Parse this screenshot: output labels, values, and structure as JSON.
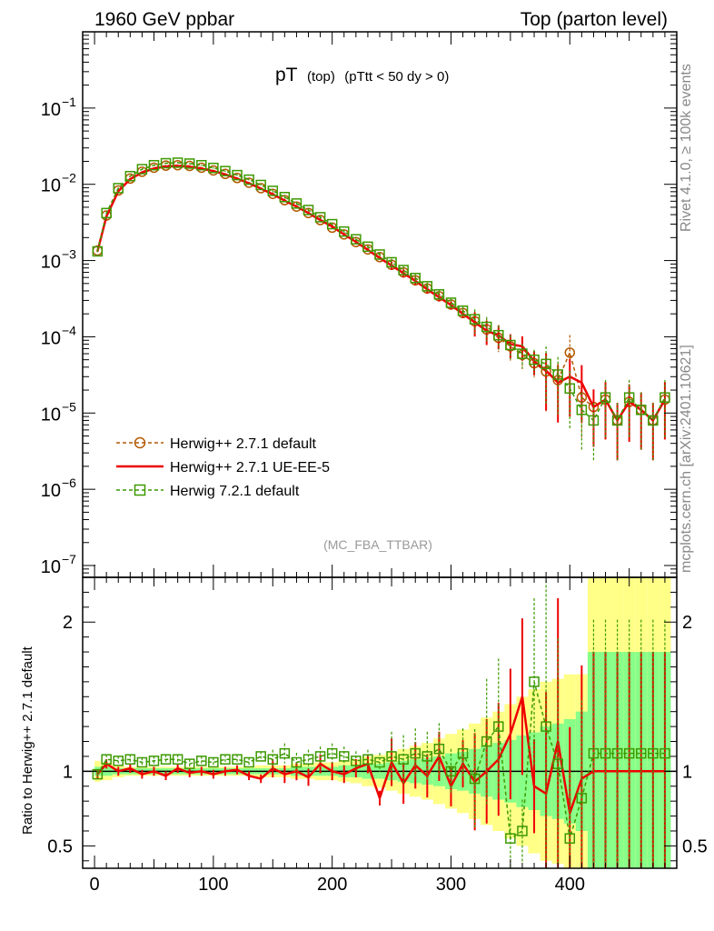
{
  "header": {
    "left": "1960 GeV ppbar",
    "right": "Top (parton level)"
  },
  "plot_title": {
    "main": "pT",
    "sub1": "(top)",
    "sub2": "(pTtt < 50 dy > 0)"
  },
  "side_labels": {
    "rivet": "Rivet 4.1.0, ≥ 100k events",
    "site": "mcplots.cern.ch [arXiv:2401.10621]"
  },
  "analysis_tag": "(MC_FBA_TTBAR)",
  "ratio_ylabel": "Ratio to Herwig++ 2.7.1 default",
  "colors": {
    "herwig_default": "#b35900",
    "herwig_ueee5": "#ee0000",
    "herwig7": "#3c9900",
    "band_yellow": "#ffff88",
    "band_green": "#88ff88"
  },
  "chart_data": {
    "type": "line",
    "xlabel": "",
    "ylabel": "",
    "xlim": [
      -10,
      490
    ],
    "main": {
      "yscale": "log",
      "ylim": [
        7e-08,
        1.0
      ],
      "ytick_labels": [
        {
          "value": 1e-07,
          "mantissa": "10",
          "exp": "−7"
        },
        {
          "value": 1e-06,
          "mantissa": "10",
          "exp": "−6"
        },
        {
          "value": 1e-05,
          "mantissa": "10",
          "exp": "−5"
        },
        {
          "value": 0.0001,
          "mantissa": "10",
          "exp": "−4"
        },
        {
          "value": 0.001,
          "mantissa": "10",
          "exp": "−3"
        },
        {
          "value": 0.01,
          "mantissa": "10",
          "exp": "−2"
        },
        {
          "value": 0.1,
          "mantissa": "10",
          "exp": "−1"
        }
      ]
    },
    "ratio": {
      "ylim": [
        0.35,
        2.3
      ],
      "yticks": [
        0.5,
        1,
        2
      ],
      "ytick_labels": [
        "0.5",
        "1",
        "2"
      ]
    },
    "xticks": [
      0,
      100,
      200,
      300,
      400
    ],
    "xtick_labels": [
      "0",
      "100",
      "200",
      "300",
      "400"
    ],
    "legend": [
      {
        "label": "Herwig++ 2.7.1 default",
        "style": "circle-dashed"
      },
      {
        "label": "Herwig++ 2.7.1 UE-EE-5",
        "style": "solid"
      },
      {
        "label": "Herwig 7.2.1 default",
        "style": "square-dashed"
      }
    ],
    "series": [
      {
        "name": "Herwig++ 2.7.1 default",
        "x": [
          2.5,
          10,
          20,
          30,
          40,
          50,
          60,
          70,
          80,
          90,
          100,
          110,
          120,
          130,
          140,
          150,
          160,
          170,
          180,
          190,
          200,
          210,
          220,
          230,
          240,
          250,
          260,
          270,
          280,
          290,
          300,
          310,
          320,
          330,
          340,
          350,
          360,
          370,
          380,
          390,
          400,
          410,
          420,
          430,
          440,
          450,
          460,
          470,
          480
        ],
        "values": [
          0.00135,
          0.0039,
          0.0083,
          0.0119,
          0.0146,
          0.0165,
          0.0176,
          0.0178,
          0.0174,
          0.0165,
          0.0152,
          0.0137,
          0.0121,
          0.0105,
          0.0089,
          0.0075,
          0.0062,
          0.0051,
          0.0042,
          0.0034,
          0.0027,
          0.0022,
          0.00175,
          0.0014,
          0.00111,
          0.00088,
          0.0007,
          0.00055,
          0.00043,
          0.00034,
          0.000265,
          0.000205,
          0.00016,
          0.000125,
          9.7e-05,
          7.5e-05,
          5.8e-05,
          4.5e-05,
          3.5e-05,
          2.7e-05,
          6.2e-05,
          1.6e-05,
          1.2e-05,
          1.5e-05,
          8e-06,
          1.4e-05,
          1.1e-05,
          8e-06,
          1.5e-05
        ]
      },
      {
        "name": "Herwig++ 2.7.1 UE-EE-5",
        "x": [
          2.5,
          10,
          20,
          30,
          40,
          50,
          60,
          70,
          80,
          90,
          100,
          110,
          120,
          130,
          140,
          150,
          160,
          170,
          180,
          190,
          200,
          210,
          220,
          230,
          240,
          250,
          260,
          270,
          280,
          290,
          300,
          310,
          320,
          330,
          340,
          350,
          360,
          370,
          380,
          390,
          400,
          410,
          420,
          430,
          440,
          450,
          460,
          470,
          480
        ],
        "values": [
          0.00132,
          0.0038,
          0.0081,
          0.0117,
          0.0143,
          0.0161,
          0.0171,
          0.0174,
          0.017,
          0.0161,
          0.0149,
          0.0135,
          0.0119,
          0.0103,
          0.0088,
          0.0074,
          0.0061,
          0.0051,
          0.0042,
          0.0034,
          0.0028,
          0.0022,
          0.00176,
          0.00138,
          0.00108,
          0.00086,
          0.00068,
          0.00054,
          0.00042,
          0.00033,
          0.00026,
          0.0002,
          0.000155,
          0.00012,
          0.000105,
          8e-05,
          7.5e-05,
          4.8e-05,
          3.6e-05,
          2.5e-05,
          3e-05,
          2.5e-05,
          1.2e-05,
          1.5e-05,
          8e-06,
          1.4e-05,
          1.1e-05,
          8e-06,
          1.5e-05
        ]
      },
      {
        "name": "Herwig 7.2.1 default",
        "x": [
          2.5,
          10,
          20,
          30,
          40,
          50,
          60,
          70,
          80,
          90,
          100,
          110,
          120,
          130,
          140,
          150,
          160,
          170,
          180,
          190,
          200,
          210,
          220,
          230,
          240,
          250,
          260,
          270,
          280,
          290,
          300,
          310,
          320,
          330,
          340,
          350,
          360,
          370,
          380,
          390,
          400,
          410,
          420,
          430,
          440,
          450,
          460,
          470,
          480
        ],
        "values": [
          0.00132,
          0.0042,
          0.0089,
          0.0128,
          0.0158,
          0.0178,
          0.0189,
          0.0192,
          0.0187,
          0.0178,
          0.0164,
          0.0149,
          0.0132,
          0.0115,
          0.0098,
          0.0082,
          0.0068,
          0.0056,
          0.0046,
          0.0037,
          0.003,
          0.0024,
          0.0019,
          0.00152,
          0.0012,
          0.00095,
          0.00075,
          0.00059,
          0.00046,
          0.00036,
          0.00028,
          0.00022,
          0.00017,
          0.000135,
          0.000105,
          7.8e-05,
          6e-05,
          5e-05,
          4.4e-05,
          3.2e-05,
          2.1e-05,
          1.1e-05,
          8e-06,
          1.6e-05,
          8e-06,
          1.6e-05,
          1.1e-05,
          8e-06,
          1.6e-05
        ]
      }
    ],
    "ratio_series": [
      {
        "name": "Herwig++ 2.7.1 UE-EE-5",
        "x": [
          2.5,
          10,
          20,
          30,
          40,
          50,
          60,
          70,
          80,
          90,
          100,
          110,
          120,
          130,
          140,
          150,
          160,
          170,
          180,
          190,
          200,
          210,
          220,
          230,
          240,
          250,
          260,
          270,
          280,
          290,
          300,
          310,
          320,
          330,
          340,
          350,
          360,
          370,
          380,
          390,
          400,
          410,
          420,
          430,
          440,
          450,
          460,
          470,
          480
        ],
        "values": [
          0.98,
          1.05,
          1.0,
          1.02,
          0.98,
          1.0,
          0.97,
          1.02,
          0.99,
          1.0,
          0.98,
          1.0,
          1.01,
          0.97,
          0.95,
          1.02,
          0.98,
          1.0,
          0.96,
          1.05,
          1.0,
          0.98,
          1.02,
          1.05,
          0.82,
          1.06,
          0.92,
          1.04,
          0.97,
          1.1,
          0.9,
          1.05,
          0.93,
          1.0,
          1.08,
          1.25,
          1.5,
          0.9,
          0.85,
          1.2,
          0.72,
          0.95,
          1.0,
          1.0,
          1.0,
          1.0,
          1.0,
          1.0,
          1.0
        ]
      },
      {
        "name": "Herwig 7.2.1 default",
        "x": [
          2.5,
          10,
          20,
          30,
          40,
          50,
          60,
          70,
          80,
          90,
          100,
          110,
          120,
          130,
          140,
          150,
          160,
          170,
          180,
          190,
          200,
          210,
          220,
          230,
          240,
          250,
          260,
          270,
          280,
          290,
          300,
          310,
          320,
          330,
          340,
          350,
          360,
          370,
          380,
          390,
          400,
          410,
          420,
          430,
          440,
          450,
          460,
          470,
          480
        ],
        "values": [
          0.98,
          1.08,
          1.07,
          1.08,
          1.06,
          1.07,
          1.08,
          1.08,
          1.05,
          1.07,
          1.06,
          1.08,
          1.08,
          1.06,
          1.1,
          1.08,
          1.12,
          1.06,
          1.08,
          1.1,
          1.12,
          1.1,
          1.07,
          1.08,
          1.06,
          1.1,
          1.08,
          1.12,
          1.1,
          1.15,
          1.0,
          1.12,
          0.95,
          1.2,
          1.3,
          0.55,
          0.6,
          1.6,
          1.3,
          1.05,
          0.55,
          0.82,
          1.12,
          1.12,
          1.12,
          1.12,
          1.12,
          1.12,
          1.12
        ]
      }
    ],
    "uncertainty_bands": {
      "x_edges": [
        0,
        5,
        15,
        25,
        35,
        45,
        55,
        65,
        75,
        85,
        95,
        105,
        115,
        125,
        135,
        145,
        155,
        165,
        175,
        185,
        195,
        205,
        215,
        225,
        235,
        245,
        255,
        265,
        275,
        285,
        295,
        305,
        315,
        325,
        335,
        345,
        355,
        365,
        375,
        385,
        395,
        405,
        415,
        425,
        435,
        445,
        455,
        465,
        475,
        485
      ],
      "yellow_half_width": [
        0.07,
        0.06,
        0.04,
        0.03,
        0.03,
        0.03,
        0.03,
        0.03,
        0.03,
        0.03,
        0.03,
        0.03,
        0.03,
        0.03,
        0.04,
        0.04,
        0.04,
        0.05,
        0.05,
        0.06,
        0.06,
        0.07,
        0.08,
        0.1,
        0.11,
        0.13,
        0.15,
        0.17,
        0.19,
        0.22,
        0.25,
        0.28,
        0.32,
        0.36,
        0.4,
        0.45,
        0.5,
        0.55,
        0.6,
        0.62,
        0.65,
        0.65,
        1.3,
        1.3,
        1.3,
        1.3,
        1.3,
        1.3,
        1.3
      ],
      "green_half_width": [
        0.03,
        0.03,
        0.02,
        0.02,
        0.02,
        0.02,
        0.02,
        0.02,
        0.02,
        0.02,
        0.02,
        0.02,
        0.02,
        0.02,
        0.02,
        0.02,
        0.02,
        0.03,
        0.03,
        0.03,
        0.03,
        0.04,
        0.04,
        0.05,
        0.05,
        0.06,
        0.07,
        0.08,
        0.09,
        0.1,
        0.12,
        0.13,
        0.15,
        0.17,
        0.19,
        0.21,
        0.24,
        0.26,
        0.3,
        0.32,
        0.35,
        0.4,
        0.8,
        0.8,
        0.8,
        0.8,
        0.8,
        0.8,
        0.8
      ]
    }
  }
}
